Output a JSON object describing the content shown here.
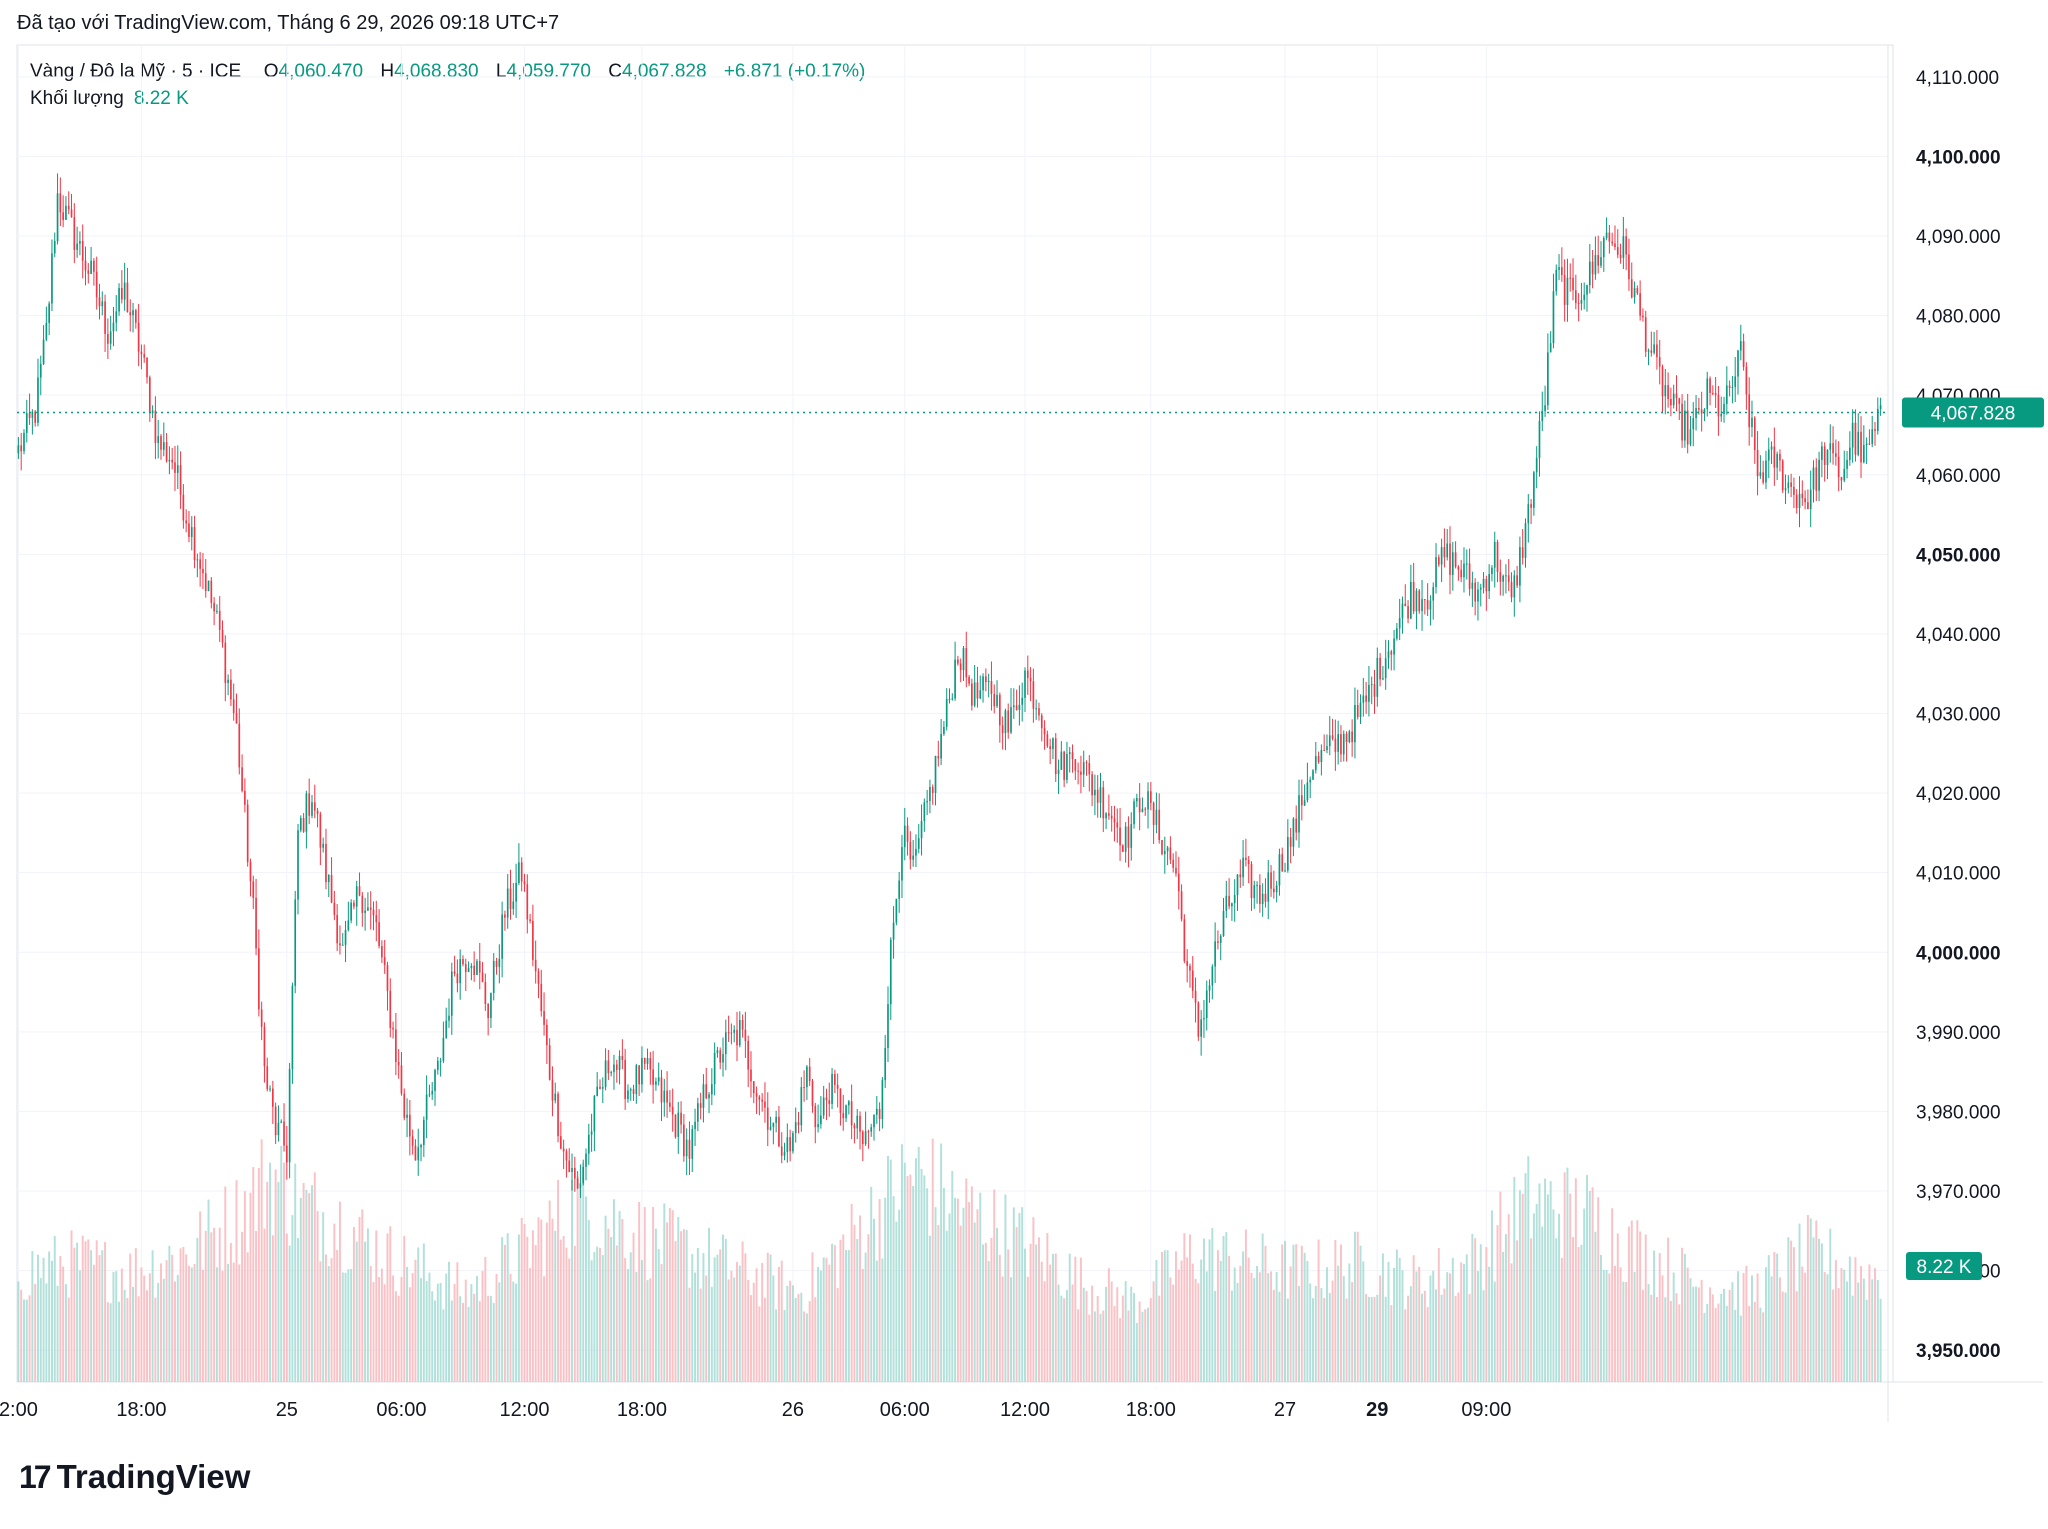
{
  "header": {
    "created_text": "Đã tạo với TradingView.com, Tháng 6 29, 2026 09:18 UTC+7"
  },
  "legend": {
    "symbol": "Vàng / Đô la Mỹ · 5 · ICE",
    "open_label": "O",
    "open_value": "4,060.470",
    "high_label": "H",
    "high_value": "4,068.830",
    "low_label": "L",
    "low_value": "4,059.770",
    "close_label": "C",
    "close_value": "4,067.828",
    "change": "+6.871 (+0.17%)",
    "volume_label": "Khối lượng",
    "volume_value": "8.22 K"
  },
  "colors": {
    "up": "#089981",
    "down": "#f23645",
    "up_volume": "#9fd8d1",
    "down_volume": "#f7b3b8",
    "grid": "#f0f3fa",
    "price_tag": "#089981"
  },
  "chart_data": {
    "type": "candlestick",
    "title": "Vàng / Đô la Mỹ · 5 · ICE",
    "ylim": [
      3946,
      4114
    ],
    "y_ticks": [
      "4,110.000",
      "4,100.000",
      "4,090.000",
      "4,080.000",
      "4,070.000",
      "4,060.000",
      "4,050.000",
      "4,040.000",
      "4,030.000",
      "4,020.000",
      "4,010.000",
      "4,000.000",
      "3,990.000",
      "3,980.000",
      "3,970.000",
      "3,960.000",
      "3,950.000"
    ],
    "y_tick_values": [
      4110,
      4100,
      4090,
      4080,
      4070,
      4060,
      4050,
      4040,
      4030,
      4020,
      4010,
      4000,
      3990,
      3980,
      3970,
      3960,
      3950
    ],
    "y_tick_bold": [
      false,
      true,
      false,
      false,
      false,
      false,
      true,
      false,
      false,
      false,
      false,
      true,
      false,
      false,
      false,
      false,
      true
    ],
    "x_ticks": [
      "2:00",
      "18:00",
      "25",
      "06:00",
      "12:00",
      "18:00",
      "26",
      "06:00",
      "12:00",
      "18:00",
      "27",
      "29",
      "09:00"
    ],
    "x_tick_bold": [
      false,
      false,
      false,
      false,
      false,
      false,
      false,
      false,
      false,
      false,
      false,
      true,
      false
    ],
    "x_tick_index": [
      0,
      44,
      96,
      137,
      181,
      223,
      277,
      317,
      360,
      405,
      453,
      486,
      525
    ],
    "last_price": "4,067.828",
    "last_price_value": 4067.828,
    "last_volume": "8.22 K",
    "anchor_closes": [
      [
        0,
        4063
      ],
      [
        6,
        4068
      ],
      [
        10,
        4078
      ],
      [
        14,
        4095
      ],
      [
        20,
        4090
      ],
      [
        26,
        4085
      ],
      [
        32,
        4078
      ],
      [
        38,
        4083
      ],
      [
        44,
        4075
      ],
      [
        50,
        4064
      ],
      [
        55,
        4062
      ],
      [
        60,
        4055
      ],
      [
        66,
        4048
      ],
      [
        72,
        4040
      ],
      [
        78,
        4028
      ],
      [
        84,
        4005
      ],
      [
        88,
        3985
      ],
      [
        92,
        3978
      ],
      [
        96,
        3975
      ],
      [
        100,
        4015
      ],
      [
        105,
        4020
      ],
      [
        110,
        4010
      ],
      [
        116,
        4000
      ],
      [
        122,
        4008
      ],
      [
        128,
        4003
      ],
      [
        134,
        3990
      ],
      [
        138,
        3980
      ],
      [
        142,
        3975
      ],
      [
        146,
        3980
      ],
      [
        150,
        3985
      ],
      [
        156,
        3998
      ],
      [
        162,
        4000
      ],
      [
        168,
        3993
      ],
      [
        174,
        4005
      ],
      [
        180,
        4010
      ],
      [
        186,
        3995
      ],
      [
        190,
        3985
      ],
      [
        195,
        3975
      ],
      [
        200,
        3970
      ],
      [
        206,
        3980
      ],
      [
        212,
        3987
      ],
      [
        218,
        3983
      ],
      [
        224,
        3985
      ],
      [
        230,
        3982
      ],
      [
        236,
        3978
      ],
      [
        240,
        3975
      ],
      [
        246,
        3983
      ],
      [
        252,
        3988
      ],
      [
        258,
        3990
      ],
      [
        264,
        3983
      ],
      [
        270,
        3978
      ],
      [
        276,
        3975
      ],
      [
        282,
        3985
      ],
      [
        286,
        3978
      ],
      [
        290,
        3983
      ],
      [
        296,
        3980
      ],
      [
        302,
        3976
      ],
      [
        308,
        3980
      ],
      [
        312,
        4000
      ],
      [
        316,
        4015
      ],
      [
        320,
        4010
      ],
      [
        326,
        4020
      ],
      [
        332,
        4030
      ],
      [
        336,
        4038
      ],
      [
        342,
        4032
      ],
      [
        348,
        4033
      ],
      [
        354,
        4028
      ],
      [
        360,
        4035
      ],
      [
        366,
        4030
      ],
      [
        372,
        4023
      ],
      [
        378,
        4025
      ],
      [
        384,
        4021
      ],
      [
        390,
        4018
      ],
      [
        396,
        4014
      ],
      [
        402,
        4020
      ],
      [
        408,
        4015
      ],
      [
        414,
        4010
      ],
      [
        418,
        3998
      ],
      [
        422,
        3990
      ],
      [
        428,
        4000
      ],
      [
        432,
        4005
      ],
      [
        438,
        4010
      ],
      [
        444,
        4007
      ],
      [
        450,
        4010
      ],
      [
        456,
        4015
      ],
      [
        462,
        4023
      ],
      [
        468,
        4025
      ],
      [
        474,
        4027
      ],
      [
        480,
        4030
      ],
      [
        486,
        4035
      ],
      [
        492,
        4040
      ],
      [
        498,
        4045
      ],
      [
        504,
        4045
      ],
      [
        510,
        4050
      ],
      [
        516,
        4048
      ],
      [
        522,
        4045
      ],
      [
        528,
        4050
      ],
      [
        534,
        4044
      ],
      [
        540,
        4055
      ],
      [
        546,
        4070
      ],
      [
        550,
        4085
      ],
      [
        556,
        4082
      ],
      [
        562,
        4085
      ],
      [
        568,
        4090
      ],
      [
        574,
        4088
      ],
      [
        580,
        4080
      ],
      [
        586,
        4073
      ],
      [
        592,
        4068
      ],
      [
        598,
        4065
      ],
      [
        604,
        4070
      ],
      [
        610,
        4068
      ],
      [
        616,
        4075
      ],
      [
        622,
        4060
      ],
      [
        628,
        4062
      ],
      [
        634,
        4058
      ],
      [
        640,
        4057
      ],
      [
        646,
        4063
      ],
      [
        652,
        4060
      ],
      [
        656,
        4065
      ],
      [
        660,
        4062
      ],
      [
        666,
        4067
      ]
    ],
    "volume_max": 30,
    "volume_profile": [
      [
        0,
        11
      ],
      [
        20,
        12
      ],
      [
        40,
        11
      ],
      [
        60,
        13
      ],
      [
        80,
        17
      ],
      [
        90,
        21
      ],
      [
        100,
        18
      ],
      [
        115,
        16
      ],
      [
        130,
        13
      ],
      [
        145,
        11
      ],
      [
        160,
        9
      ],
      [
        180,
        13
      ],
      [
        200,
        18
      ],
      [
        220,
        15
      ],
      [
        240,
        13
      ],
      [
        260,
        11
      ],
      [
        280,
        9
      ],
      [
        300,
        15
      ],
      [
        320,
        21
      ],
      [
        340,
        17
      ],
      [
        360,
        14
      ],
      [
        380,
        10
      ],
      [
        400,
        8
      ],
      [
        420,
        13
      ],
      [
        440,
        12
      ],
      [
        460,
        11
      ],
      [
        480,
        12
      ],
      [
        500,
        10
      ],
      [
        520,
        12
      ],
      [
        540,
        18
      ],
      [
        560,
        17
      ],
      [
        580,
        13
      ],
      [
        600,
        10
      ],
      [
        620,
        9
      ],
      [
        640,
        13
      ],
      [
        660,
        11
      ],
      [
        666,
        11
      ]
    ]
  }
}
